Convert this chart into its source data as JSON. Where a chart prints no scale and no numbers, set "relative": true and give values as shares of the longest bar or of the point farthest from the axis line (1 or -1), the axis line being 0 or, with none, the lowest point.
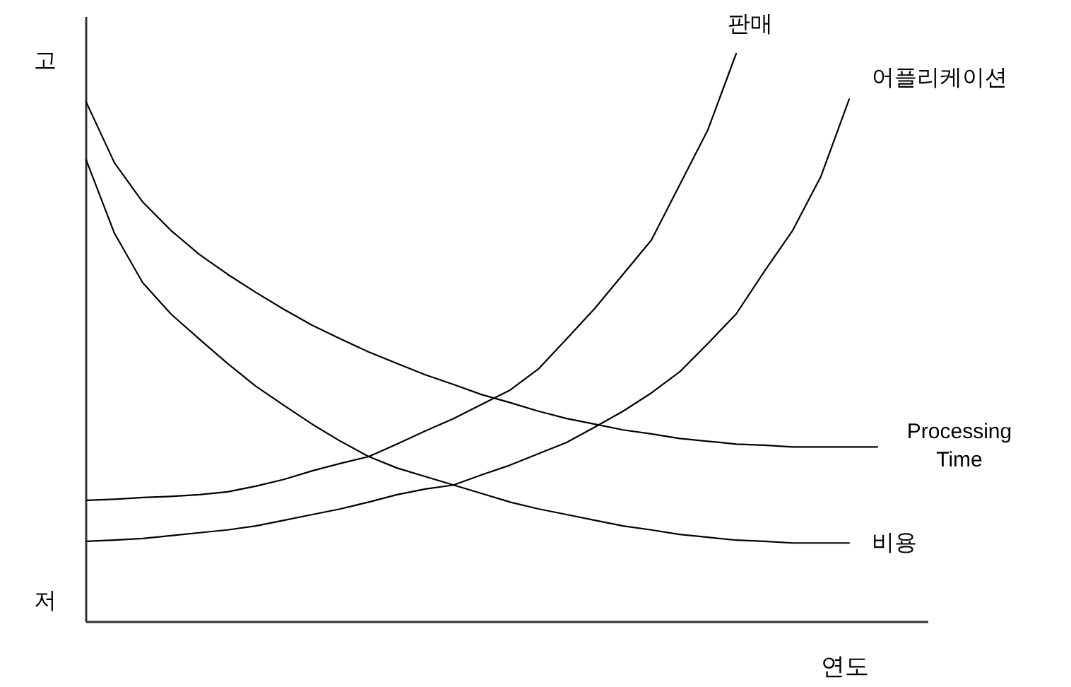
{
  "chart_data": {
    "type": "line",
    "relative": true,
    "xlabel": "연도",
    "annotations": [
      "고",
      "저"
    ],
    "categories": [
      null,
      null,
      null,
      null,
      null,
      null,
      null,
      null,
      null,
      null,
      null,
      null,
      null,
      null,
      null,
      null,
      null,
      null,
      null,
      null,
      null,
      null,
      null,
      null,
      null,
      null,
      null,
      null,
      null
    ],
    "series": [
      {
        "name": "판매",
        "color": "#000000",
        "values": [
          0.214,
          0.216,
          0.219,
          0.221,
          0.224,
          0.229,
          0.239,
          0.251,
          0.266,
          0.279,
          0.291,
          0.313,
          0.336,
          0.358,
          0.383,
          0.408,
          0.445,
          0.498,
          0.552,
          0.612,
          0.672,
          0.769,
          0.866,
          1,
          null,
          null,
          null,
          null,
          null
        ]
      },
      {
        "name": "어플리케이션",
        "color": "#000000",
        "values": [
          0.142,
          0.144,
          0.147,
          0.152,
          0.157,
          0.162,
          0.169,
          0.179,
          0.189,
          0.199,
          0.211,
          0.224,
          0.234,
          0.241,
          0.259,
          0.276,
          0.296,
          0.316,
          0.343,
          0.371,
          0.403,
          0.44,
          0.49,
          0.542,
          0.617,
          0.689,
          0.784,
          0.92,
          null
        ]
      },
      {
        "name": "Processing Time",
        "color": "#000000",
        "values": [
          0.915,
          0.808,
          0.739,
          0.689,
          0.647,
          0.612,
          0.58,
          0.55,
          0.522,
          0.498,
          0.475,
          0.455,
          0.435,
          0.418,
          0.4,
          0.386,
          0.371,
          0.358,
          0.348,
          0.338,
          0.331,
          0.323,
          0.318,
          0.313,
          0.311,
          0.308,
          0.308,
          0.308,
          0.308
        ]
      },
      {
        "name": "비용",
        "color": "#000000",
        "values": [
          0.813,
          0.684,
          0.597,
          0.542,
          0.498,
          0.455,
          0.415,
          0.381,
          0.348,
          0.318,
          0.291,
          0.271,
          0.256,
          0.241,
          0.226,
          0.211,
          0.199,
          0.189,
          0.179,
          0.169,
          0.162,
          0.154,
          0.149,
          0.144,
          0.142,
          0.139,
          0.139,
          0.139,
          null
        ]
      }
    ]
  }
}
